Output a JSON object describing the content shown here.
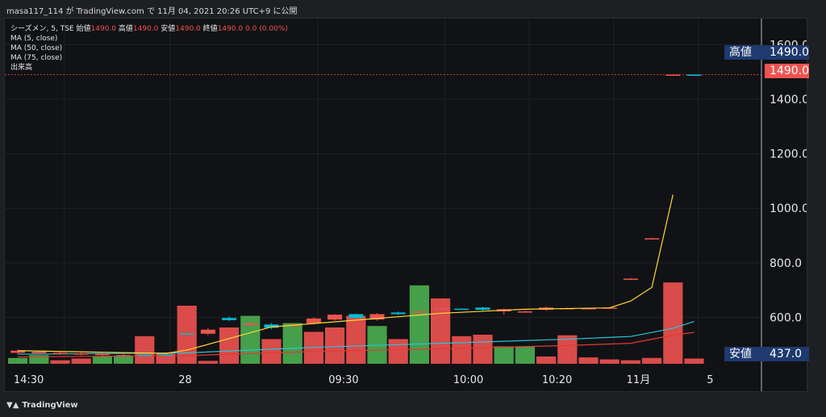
{
  "header": {
    "text": "masa117_114 が TradingView.com で 11月 04, 2021 20:26 UTC+9 に公開"
  },
  "legend": {
    "symbol": "シーズメン, 5, TSE",
    "ohlc": {
      "open_label": "始値",
      "open": "1490.0",
      "high_label": "高値",
      "high": "1490.0",
      "low_label": "安値",
      "low": "1490.0",
      "close_label": "終値",
      "close": "1490.0",
      "change": "0.0 (0.00%)"
    },
    "indicators": [
      "MA (5, close)",
      "MA (50, close)",
      "MA (75, close)",
      "出来高"
    ]
  },
  "badges": {
    "high_label": "高値",
    "high_value": "1490.0",
    "last_value": "1490.0",
    "low_label": "安値",
    "low_value": "437.0"
  },
  "footer": {
    "brand": "TradingView"
  },
  "colors": {
    "up": "#4caf50",
    "down": "#ef5350",
    "ma5": "#fdd835",
    "ma50": "#26c6da",
    "ma75": "#e53935",
    "badge_blue": "#1e3a6e"
  },
  "chart_data": {
    "type": "candlestick",
    "ylim": [
      430,
      1660
    ],
    "y_ticks": [
      "1600.0",
      "1400.0",
      "1200.0",
      "1000.0",
      "800.0",
      "600.0"
    ],
    "y_tick_values": [
      1600,
      1400,
      1200,
      1000,
      800,
      600
    ],
    "x_ticks": [
      "14:30",
      "28",
      "09:30",
      "10:00",
      "10:20",
      "11月",
      "5"
    ],
    "candles": [
      {
        "o": 478,
        "c": 470,
        "h": 482,
        "l": 466
      },
      {
        "o": 474,
        "c": 468,
        "h": 478,
        "l": 464
      },
      {
        "o": 470,
        "c": 466,
        "h": 474,
        "l": 462
      },
      {
        "o": 468,
        "c": 464,
        "h": 472,
        "l": 460
      },
      {
        "o": 466,
        "c": 462,
        "h": 470,
        "l": 458
      },
      {
        "o": 462,
        "c": 458,
        "h": 466,
        "l": 454
      },
      {
        "o": 460,
        "c": 462,
        "h": 466,
        "l": 456
      },
      {
        "o": 462,
        "c": 463,
        "h": 466,
        "l": 458
      },
      {
        "o": 540,
        "c": 541,
        "h": 544,
        "l": 538
      },
      {
        "o": 555,
        "c": 540,
        "h": 560,
        "l": 535
      },
      {
        "o": 590,
        "c": 598,
        "h": 604,
        "l": 586
      },
      {
        "o": 578,
        "c": 572,
        "h": 584,
        "l": 568
      },
      {
        "o": 562,
        "c": 574,
        "h": 580,
        "l": 556
      },
      {
        "o": 572,
        "c": 568,
        "h": 578,
        "l": 564
      },
      {
        "o": 596,
        "c": 578,
        "h": 600,
        "l": 574
      },
      {
        "o": 610,
        "c": 592,
        "h": 612,
        "l": 588
      },
      {
        "o": 598,
        "c": 612,
        "h": 614,
        "l": 594
      },
      {
        "o": 612,
        "c": 592,
        "h": 616,
        "l": 588
      },
      {
        "o": 612,
        "c": 618,
        "h": 622,
        "l": 608
      },
      {
        "o": 622,
        "c": 620,
        "h": 626,
        "l": 616
      },
      {
        "o": 634,
        "c": 632,
        "h": 636,
        "l": 630
      },
      {
        "o": 630,
        "c": 632,
        "h": 634,
        "l": 628
      },
      {
        "o": 628,
        "c": 636,
        "h": 640,
        "l": 622
      },
      {
        "o": 630,
        "c": 622,
        "h": 632,
        "l": 610
      },
      {
        "o": 622,
        "c": 620,
        "h": 626,
        "l": 618
      },
      {
        "o": 636,
        "c": 628,
        "h": 640,
        "l": 624
      },
      {
        "o": 634,
        "c": 632,
        "h": 636,
        "l": 630
      },
      {
        "o": 634,
        "c": 632,
        "h": 636,
        "l": 630
      },
      {
        "o": 636,
        "c": 634,
        "h": 638,
        "l": 632
      },
      {
        "o": 742,
        "c": 740,
        "h": 744,
        "l": 738
      },
      {
        "o": 890,
        "c": 888,
        "h": 892,
        "l": 886
      },
      {
        "o": 1490,
        "c": 1488,
        "h": 1492,
        "l": 1486
      },
      {
        "o": 1490,
        "c": 1490,
        "h": 1490,
        "l": 1490
      }
    ],
    "volume": [
      {
        "v": 20,
        "up": true
      },
      {
        "v": 30,
        "up": true
      },
      {
        "v": 12,
        "up": false
      },
      {
        "v": 18,
        "up": false
      },
      {
        "v": 25,
        "up": true
      },
      {
        "v": 28,
        "up": true
      },
      {
        "v": 95,
        "up": false
      },
      {
        "v": 35,
        "up": false
      },
      {
        "v": 200,
        "up": false
      },
      {
        "v": 10,
        "up": false
      },
      {
        "v": 125,
        "up": false
      },
      {
        "v": 165,
        "up": true
      },
      {
        "v": 85,
        "up": false
      },
      {
        "v": 140,
        "up": true
      },
      {
        "v": 110,
        "up": false
      },
      {
        "v": 125,
        "up": false
      },
      {
        "v": 165,
        "up": false
      },
      {
        "v": 130,
        "up": true
      },
      {
        "v": 85,
        "up": false
      },
      {
        "v": 270,
        "up": true
      },
      {
        "v": 225,
        "up": false
      },
      {
        "v": 95,
        "up": false
      },
      {
        "v": 100,
        "up": false
      },
      {
        "v": 60,
        "up": true
      },
      {
        "v": 60,
        "up": true
      },
      {
        "v": 25,
        "up": false
      },
      {
        "v": 98,
        "up": false
      },
      {
        "v": 22,
        "up": false
      },
      {
        "v": 15,
        "up": false
      },
      {
        "v": 12,
        "up": false
      },
      {
        "v": 20,
        "up": false
      },
      {
        "v": 280,
        "up": false
      },
      {
        "v": 18,
        "up": false
      }
    ],
    "ma5": [
      [
        0,
        478
      ],
      [
        7,
        468
      ],
      [
        8,
        480
      ],
      [
        12,
        565
      ],
      [
        16,
        590
      ],
      [
        20,
        615
      ],
      [
        24,
        630
      ],
      [
        28,
        635
      ],
      [
        29,
        660
      ],
      [
        30,
        710
      ],
      [
        31,
        1050
      ]
    ],
    "ma50": [
      [
        0,
        465
      ],
      [
        8,
        470
      ],
      [
        14,
        490
      ],
      [
        20,
        505
      ],
      [
        26,
        520
      ],
      [
        29,
        530
      ],
      [
        31,
        560
      ],
      [
        32,
        585
      ]
    ],
    "ma75": [
      [
        0,
        455
      ],
      [
        8,
        460
      ],
      [
        14,
        475
      ],
      [
        20,
        485
      ],
      [
        26,
        497
      ],
      [
        29,
        505
      ],
      [
        31,
        535
      ],
      [
        32,
        545
      ]
    ]
  }
}
